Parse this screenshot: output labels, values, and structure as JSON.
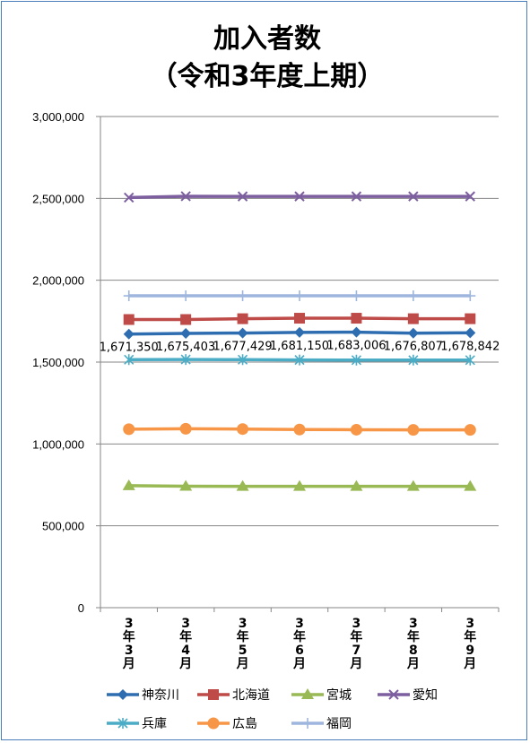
{
  "chart_data": {
    "type": "line",
    "title_lines": [
      "加入者数",
      "（令和3年度上期）"
    ],
    "categories": [
      [
        "3",
        "年",
        "3",
        "月"
      ],
      [
        "3",
        "年",
        "4",
        "月"
      ],
      [
        "3",
        "年",
        "5",
        "月"
      ],
      [
        "3",
        "年",
        "6",
        "月"
      ],
      [
        "3",
        "年",
        "7",
        "月"
      ],
      [
        "3",
        "年",
        "8",
        "月"
      ],
      [
        "3",
        "年",
        "9",
        "月"
      ]
    ],
    "ylim": [
      0,
      3000000
    ],
    "yticks": [
      0,
      500000,
      1000000,
      1500000,
      2000000,
      2500000,
      3000000
    ],
    "ytick_labels": [
      "0",
      "500,000",
      "1,000,000",
      "1,500,000",
      "2,000,000",
      "2,500,000",
      "3,000,000"
    ],
    "grid": "horizontal",
    "legend_position": "bottom",
    "series": [
      {
        "name": "神奈川",
        "color": "#2f6db1",
        "marker": "diamond",
        "values": [
          1671350,
          1675403,
          1677429,
          1681150,
          1683006,
          1676807,
          1678842
        ],
        "labels": [
          "1,671,350",
          "1,675,403",
          "1,677,429",
          "1,681,150",
          "1,683,006",
          "1,676,807",
          "1,678,842"
        ]
      },
      {
        "name": "北海道",
        "color": "#be4b48",
        "marker": "square",
        "values": [
          1760000,
          1760000,
          1765000,
          1768000,
          1768000,
          1765000,
          1765000
        ]
      },
      {
        "name": "宮城",
        "color": "#98b954",
        "marker": "triangle",
        "values": [
          745000,
          742000,
          741000,
          741000,
          741000,
          741000,
          741000
        ]
      },
      {
        "name": "愛知",
        "color": "#7d5fa0",
        "marker": "x",
        "values": [
          2505000,
          2513000,
          2512000,
          2512000,
          2512000,
          2512000,
          2512000
        ]
      },
      {
        "name": "兵庫",
        "color": "#4bacc6",
        "marker": "asterisk",
        "values": [
          1515000,
          1516000,
          1515000,
          1513000,
          1512000,
          1512000,
          1512000
        ]
      },
      {
        "name": "広島",
        "color": "#f79646",
        "marker": "circle",
        "values": [
          1090000,
          1093000,
          1091000,
          1088000,
          1087000,
          1086000,
          1086000
        ]
      },
      {
        "name": "福岡",
        "color": "#9eb6de",
        "marker": "plus",
        "values": [
          1905000,
          1905000,
          1905000,
          1905000,
          1905000,
          1905000,
          1905000
        ]
      }
    ]
  }
}
